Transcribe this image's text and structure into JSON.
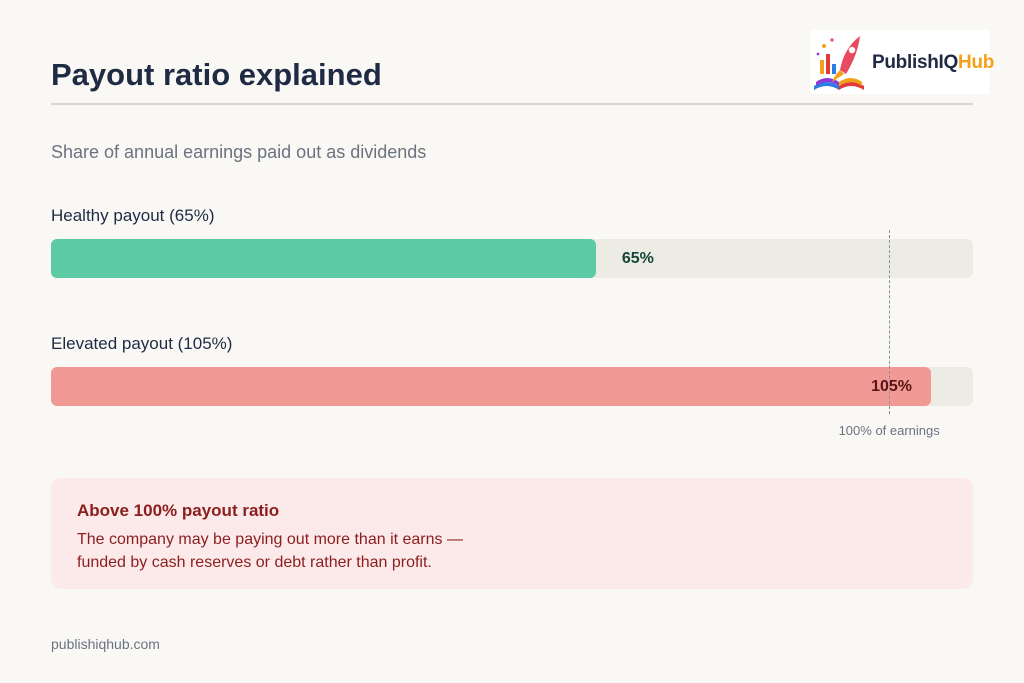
{
  "header": {
    "title": "Payout ratio explained",
    "logo_text_main": "PublishIQ",
    "logo_text_accent": "Hub"
  },
  "subtitle": "Share of annual earnings paid out as dividends",
  "chart_data": {
    "type": "bar",
    "orientation": "horizontal",
    "axis_max": 110,
    "categories": [
      "Healthy payout (65%)",
      "Elevated payout (105%)"
    ],
    "values": [
      65,
      105
    ],
    "value_labels": [
      "65%",
      "105%"
    ],
    "bar_colors": [
      "#5ccaa5",
      "#f19a95"
    ],
    "value_label_colors": [
      "#14463a",
      "#5a1414"
    ],
    "reference_line": {
      "value": 100,
      "label": "100% of earnings"
    }
  },
  "callout": {
    "title": "Above 100% payout ratio",
    "body_line1": "The company may be paying out more than it earns —",
    "body_line2": "funded by cash reserves or debt rather than profit."
  },
  "footer": "publishiqhub.com"
}
